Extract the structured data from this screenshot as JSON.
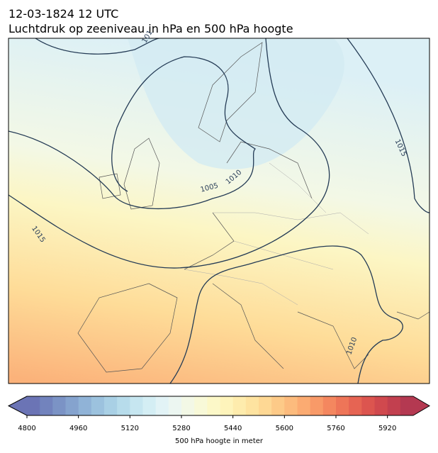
{
  "header": {
    "title": "12-03-1824 12 UTC",
    "subtitle": "Luchtdruk op zeeniveau in hPa en 500 hPa hoogte"
  },
  "map": {
    "isobar_labels": [
      "101",
      "1015",
      "1005",
      "1010",
      "1015",
      "1010"
    ]
  },
  "colorbar": {
    "label": "500 hPa hoogte in meter",
    "clim": [
      4800,
      6000
    ],
    "ticks": [
      4800,
      4960,
      5120,
      5280,
      5440,
      5600,
      5760,
      5920
    ],
    "colors": [
      "#6b74b5",
      "#7283bd",
      "#7b93c5",
      "#85a3ce",
      "#90b3d7",
      "#9cc2de",
      "#a9d0e5",
      "#b7dceb",
      "#c6e6f0",
      "#d4eef4",
      "#e2f3f6",
      "#ecf6f1",
      "#f3f8e6",
      "#f8f9d8",
      "#fcf8c8",
      "#fef4bb",
      "#feecad",
      "#fee3a0",
      "#fed894",
      "#fdca88",
      "#fcbb7d",
      "#fbab72",
      "#f89a68",
      "#f4875f",
      "#ee7558",
      "#e66453",
      "#dc554f",
      "#d0494e",
      "#c2404f",
      "#b43951"
    ]
  }
}
